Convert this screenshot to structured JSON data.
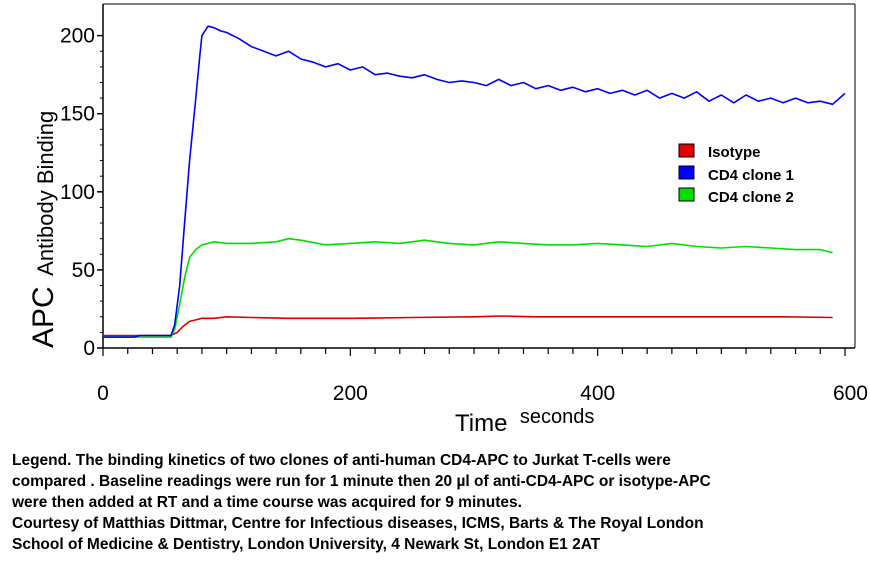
{
  "chart_data": {
    "type": "line",
    "xlabel_main": "Time",
    "xlabel_unit": "seconds",
    "ylabel_main": "APC",
    "ylabel_rest": "Antibody Binding",
    "xlim": [
      0,
      600
    ],
    "ylim": [
      0,
      210
    ],
    "x_ticks": [
      0,
      200,
      400,
      600
    ],
    "x_tick_labels": [
      "0",
      "200",
      "400",
      "600"
    ],
    "y_ticks": [
      0,
      50,
      100,
      150,
      200
    ],
    "y_tick_labels": [
      "0",
      "50",
      "100",
      "150",
      "200"
    ],
    "grid": false,
    "legend_position": "right",
    "series": [
      {
        "name": "Isotype",
        "color": "#e00000",
        "x": [
          0,
          55,
          60,
          65,
          70,
          75,
          80,
          90,
          100,
          120,
          150,
          200,
          250,
          300,
          320,
          350,
          400,
          450,
          500,
          550,
          590
        ],
        "y": [
          8,
          8,
          10,
          14,
          17,
          18,
          19,
          19,
          20,
          19.5,
          19,
          19,
          19.5,
          20,
          20.5,
          20,
          20,
          20,
          20,
          20,
          19.5
        ]
      },
      {
        "name": "CD4 clone 1",
        "color": "#0000ff",
        "x": [
          0,
          25,
          30,
          55,
          58,
          62,
          66,
          70,
          75,
          78,
          80,
          85,
          90,
          95,
          100,
          110,
          120,
          130,
          140,
          150,
          160,
          170,
          180,
          190,
          200,
          210,
          220,
          230,
          240,
          250,
          260,
          270,
          280,
          290,
          300,
          310,
          320,
          330,
          340,
          350,
          360,
          370,
          380,
          390,
          400,
          410,
          420,
          430,
          440,
          450,
          460,
          470,
          480,
          490,
          500,
          510,
          520,
          530,
          540,
          550,
          560,
          570,
          580,
          590,
          600
        ],
        "y": [
          7,
          7,
          8,
          8,
          15,
          40,
          80,
          120,
          160,
          185,
          200,
          206,
          205,
          203,
          202,
          198,
          193,
          190,
          187,
          190,
          185,
          183,
          180,
          182,
          178,
          180,
          175,
          176,
          174,
          173,
          175,
          172,
          170,
          171,
          170,
          168,
          172,
          168,
          170,
          166,
          168,
          165,
          167,
          164,
          166,
          163,
          165,
          162,
          165,
          160,
          163,
          160,
          164,
          158,
          162,
          157,
          162,
          158,
          160,
          157,
          160,
          157,
          158,
          156,
          163
        ]
      },
      {
        "name": "CD4 clone 2",
        "color": "#00e000",
        "x": [
          0,
          55,
          58,
          62,
          66,
          70,
          75,
          80,
          90,
          100,
          120,
          140,
          150,
          160,
          180,
          200,
          220,
          240,
          260,
          280,
          300,
          320,
          340,
          360,
          380,
          400,
          420,
          440,
          460,
          480,
          500,
          520,
          540,
          560,
          580,
          590
        ],
        "y": [
          7,
          7,
          12,
          28,
          45,
          58,
          63,
          66,
          68,
          67,
          67,
          68,
          70,
          69,
          66,
          67,
          68,
          67,
          69,
          67,
          66,
          68,
          67,
          66,
          66,
          67,
          66,
          65,
          67,
          65,
          64,
          65,
          64,
          63,
          63,
          61
        ]
      }
    ]
  },
  "caption": {
    "line1": "Legend.  The binding kinetics of two clones of anti-human CD4-APC to Jurkat T-cells were",
    "line2": "compared . Baseline readings were run for 1 minute then 20 µl of anti-CD4-APC or isotype-APC",
    "line3": " were then added at RT and a time course was acquired for 9 minutes.",
    "line4": "Courtesy of Matthias Dittmar, Centre for Infectious diseases, ICMS, Barts & The Royal London",
    "line5": "School of Medicine & Dentistry, London University, 4 Newark St, London E1 2AT"
  }
}
